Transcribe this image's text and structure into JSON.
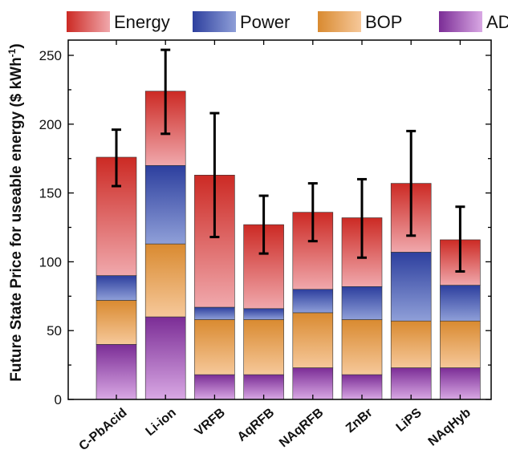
{
  "chart_data": {
    "type": "bar",
    "stacked": true,
    "title": "",
    "xlabel": "",
    "ylabel": "Future State Price for useable energy ($ kWh",
    "ylabel_sup": "-1",
    "ylabel_close": ")",
    "ylim": [
      0,
      260
    ],
    "yticks": [
      0,
      50,
      100,
      150,
      200,
      250
    ],
    "ytick_labels": [
      "0",
      "50",
      "100",
      "150",
      "200",
      "250"
    ],
    "legend_position": "top",
    "categories": [
      "C-PbAcid",
      "Li-ion",
      "VRFB",
      "AqRFB",
      "NAqRFB",
      "ZnBr",
      "LiPS",
      "NAqHyb"
    ],
    "series": [
      {
        "name": "ADD",
        "color_dark": "#7b2d96",
        "color_light": "#d9a8e4",
        "values": [
          40,
          60,
          18,
          18,
          23,
          18,
          23,
          23
        ]
      },
      {
        "name": "BOP",
        "color_dark": "#d98a30",
        "color_light": "#f6c89a",
        "values": [
          32,
          53,
          40,
          40,
          40,
          40,
          34,
          34
        ]
      },
      {
        "name": "Power",
        "color_dark": "#2d3f9e",
        "color_light": "#8f9fd8",
        "values": [
          18,
          57,
          9,
          8,
          17,
          24,
          50,
          26
        ]
      },
      {
        "name": "Energy",
        "color_dark": "#cc2a24",
        "color_light": "#f0a8ac",
        "values": [
          86,
          54,
          96,
          61,
          56,
          50,
          50,
          33
        ]
      }
    ],
    "totals": [
      176,
      224,
      163,
      127,
      136,
      132,
      157,
      116
    ],
    "error_bars": [
      {
        "low": 155,
        "high": 196
      },
      {
        "low": 193,
        "high": 254
      },
      {
        "low": 118,
        "high": 208
      },
      {
        "low": 106,
        "high": 148
      },
      {
        "low": 115,
        "high": 157
      },
      {
        "low": 103,
        "high": 160
      },
      {
        "low": 119,
        "high": 195
      },
      {
        "low": 93,
        "high": 140
      }
    ],
    "legend_order": [
      "Energy",
      "Power",
      "BOP",
      "ADD"
    ]
  }
}
